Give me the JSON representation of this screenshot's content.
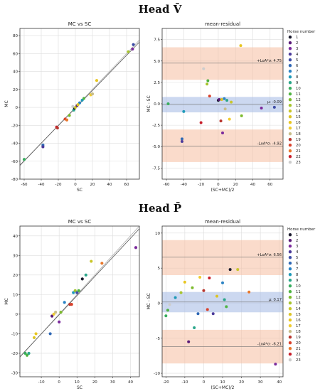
{
  "figures": [
    {
      "title": "Head V̄",
      "scatter": {
        "title": "MC vs SC",
        "xlabel": "SC",
        "ylabel": "MC",
        "xlim": [
          -65,
          75
        ],
        "ylim": [
          -80,
          88
        ],
        "xticks": [
          -60,
          -40,
          -20,
          0,
          20,
          40,
          60
        ],
        "yticks": [
          -80,
          -60,
          -40,
          -20,
          0,
          20,
          40,
          60,
          80
        ]
      },
      "ba": {
        "title": "mean-residual",
        "xlabel": "(SC+MC)/2",
        "ylabel": "MC - SC",
        "xlim": [
          -65,
          75
        ],
        "ylim": [
          -8.8,
          8.8
        ],
        "xticks": [
          -60,
          -40,
          -20,
          0,
          20,
          40,
          60
        ],
        "yticks": [
          -7.5,
          -5.0,
          -2.5,
          0.0,
          2.5,
          5.0,
          7.5
        ],
        "mean": -0.09,
        "mean_band": [
          -1.0,
          0.8
        ],
        "upper": 4.75,
        "upper_band": [
          2.8,
          6.6
        ],
        "lower": -4.92,
        "lower_band": [
          -6.8,
          -3.0
        ],
        "labels": {
          "upper": "+LoA*σ: 4.75",
          "mean": "μ: -0.09",
          "lower": "-LoA*σ: -4.92"
        }
      }
    },
    {
      "title": "Head P̄",
      "scatter": {
        "title": "MC vs SC",
        "xlabel": "SC",
        "ylabel": "MC",
        "xlim": [
          -22,
          45
        ],
        "ylim": [
          -32,
          45
        ],
        "xticks": [
          -10,
          0,
          10,
          20,
          30,
          40
        ],
        "yticks": [
          -30,
          -20,
          -10,
          0,
          10,
          20,
          30,
          40
        ]
      },
      "ba": {
        "title": "mean-residual",
        "xlabel": "(SC+MC)/2",
        "ylabel": "MC - SC",
        "xlim": [
          -22,
          42
        ],
        "ylim": [
          -10.5,
          11
        ],
        "xticks": [
          -20,
          -10,
          0,
          10,
          20,
          30,
          40
        ],
        "yticks": [
          -10,
          -5,
          0,
          5,
          10
        ],
        "mean": 0.17,
        "mean_band": [
          -1.3,
          1.6
        ],
        "upper": 6.56,
        "upper_band": [
          4.0,
          9.0
        ],
        "lower": -6.21,
        "lower_band": [
          -8.6,
          -3.8
        ],
        "labels": {
          "upper": "+LoA*σ: 6.56",
          "mean": "μ: 0.17",
          "lower": "-LoA*σ: -6.21"
        }
      }
    }
  ],
  "legend": {
    "title": "Horse number",
    "labels": [
      "1",
      "2",
      "3",
      "4",
      "5",
      "6",
      "7",
      "8",
      "9",
      "10",
      "11",
      "12",
      "13",
      "14",
      "15",
      "16",
      "17",
      "18",
      "19",
      "20",
      "21",
      "22",
      "23"
    ],
    "colors": [
      "#1b1b2e",
      "#5a1a78",
      "#7b2a9c",
      "#4b3a9a",
      "#3f4ea6",
      "#2e67b4",
      "#2b83c4",
      "#1f9ab8",
      "#2aa68a",
      "#38ad5e",
      "#4fb442",
      "#7dbb2e",
      "#a7c42e",
      "#c9c62a",
      "#dcc424",
      "#e8c620",
      "#f0cc30",
      "#c8bd8a",
      "#b8362e",
      "#d9422c",
      "#e9782c",
      "#c81e2a",
      "#cdcdcd"
    ]
  },
  "chart_data": [
    {
      "type": "scatter",
      "title": "MC vs SC",
      "panel": "Head V̄",
      "xlabel": "SC",
      "ylabel": "MC",
      "xlim": [
        -65,
        75
      ],
      "ylim": [
        -80,
        88
      ],
      "series": [
        {
          "x": [
            -60,
            -38,
            -38,
            -22,
            -21,
            -12,
            -10,
            -7,
            -2,
            -1,
            0,
            2,
            5,
            8,
            10,
            18,
            20,
            25,
            62,
            67,
            68,
            -3,
            3
          ],
          "y": [
            -58,
            -42,
            -44,
            -22,
            -23,
            -13,
            -14,
            -9,
            -3,
            -1,
            0,
            2,
            5,
            8,
            10,
            14,
            15,
            30,
            62,
            65,
            70,
            1,
            3
          ]
        }
      ]
    },
    {
      "type": "scatter",
      "title": "mean-residual",
      "panel": "Head V̄",
      "xlabel": "(SC+MC)/2",
      "ylabel": "MC - SC",
      "mean": -0.09,
      "upper": 4.75,
      "lower": -4.92,
      "series": [
        {
          "x": [
            -58,
            -42,
            -42,
            -40,
            -20,
            -17,
            -13,
            -12,
            -10,
            0,
            1,
            3,
            4,
            5,
            7,
            8,
            10,
            13,
            15,
            26,
            27,
            50,
            65
          ],
          "y": [
            0,
            -4.1,
            -4.4,
            -0.9,
            -2.2,
            4.1,
            2.3,
            2.7,
            0.9,
            0.4,
            0.5,
            -2.0,
            0.5,
            -3.4,
            0.6,
            -0.6,
            0.4,
            -1.8,
            0.2,
            6.8,
            -1.4,
            -0.5,
            -0.4
          ]
        }
      ]
    },
    {
      "type": "scatter",
      "title": "MC vs SC",
      "panel": "Head P̄",
      "xlabel": "SC",
      "ylabel": "MC",
      "xlim": [
        -22,
        45
      ],
      "ylim": [
        -32,
        45
      ],
      "series": [
        {
          "x": [
            -19,
            -18,
            -17,
            -14,
            -13,
            -5,
            -4,
            -3,
            -2,
            0,
            1,
            3,
            6,
            7,
            8,
            9,
            10,
            11,
            13,
            15,
            18,
            24,
            43
          ],
          "y": [
            -20,
            -21,
            -20,
            -12,
            -10,
            -10,
            -1,
            0,
            1,
            -4,
            1,
            6,
            5,
            5,
            11,
            12,
            11,
            12,
            18,
            20,
            27,
            26,
            34
          ]
        }
      ]
    },
    {
      "type": "scatter",
      "title": "mean-residual",
      "panel": "Head P̄",
      "xlabel": "(SC+MC)/2",
      "ylabel": "MC - SC",
      "mean": 0.17,
      "upper": 6.56,
      "lower": -6.21,
      "series": [
        {
          "x": [
            -20,
            -19,
            -18,
            -15,
            -12,
            -10,
            -8,
            -6,
            -5,
            -3,
            -2,
            0,
            2,
            3,
            5,
            7,
            10,
            11,
            12,
            14,
            18,
            24,
            38
          ],
          "y": [
            -1.8,
            -1.0,
            -0.2,
            0.8,
            1.5,
            3.0,
            -5.5,
            2.2,
            -3.5,
            -1.5,
            3.7,
            1.8,
            -0.9,
            3.6,
            -1.5,
            1.0,
            2.9,
            0.5,
            -0.5,
            4.8,
            4.8,
            1.6,
            -8.7
          ]
        }
      ]
    }
  ],
  "points": [
    {
      "scatter": [
        [
          -60,
          -58,
          10
        ],
        [
          -38,
          -42,
          6
        ],
        [
          -38,
          -44,
          4
        ],
        [
          -22,
          -22,
          22
        ],
        [
          -21,
          -23,
          19
        ],
        [
          -12,
          -13,
          20
        ],
        [
          -10,
          -14,
          21
        ],
        [
          -7,
          -9,
          12
        ],
        [
          -2,
          -3,
          9
        ],
        [
          -1,
          -1,
          1
        ],
        [
          0,
          0,
          14
        ],
        [
          2,
          2,
          2
        ],
        [
          5,
          5,
          7
        ],
        [
          8,
          8,
          8
        ],
        [
          10,
          10,
          11
        ],
        [
          18,
          14,
          17
        ],
        [
          20,
          15,
          18
        ],
        [
          25,
          30,
          16
        ],
        [
          62,
          62,
          13
        ],
        [
          67,
          65,
          3
        ],
        [
          68,
          70,
          5
        ],
        [
          -3,
          1,
          23
        ],
        [
          3,
          3,
          15
        ]
      ],
      "ba": [
        [
          -58,
          0,
          10
        ],
        [
          -42,
          -4.1,
          6
        ],
        [
          -42,
          -4.4,
          4
        ],
        [
          -40,
          -0.9,
          8
        ],
        [
          -20,
          -2.2,
          22
        ],
        [
          -17,
          4.1,
          23
        ],
        [
          -13,
          2.3,
          13
        ],
        [
          -12,
          2.7,
          11
        ],
        [
          -10,
          0.9,
          20
        ],
        [
          0,
          0.4,
          1
        ],
        [
          1,
          0.5,
          2
        ],
        [
          3,
          -2.0,
          19
        ],
        [
          4,
          0.5,
          15
        ],
        [
          5,
          -3.4,
          3
        ],
        [
          7,
          0.6,
          7
        ],
        [
          8,
          -0.6,
          18
        ],
        [
          10,
          0.4,
          9
        ],
        [
          13,
          -1.8,
          17
        ],
        [
          15,
          0.2,
          14
        ],
        [
          26,
          6.8,
          16
        ],
        [
          27,
          -1.4,
          12
        ],
        [
          50,
          -0.5,
          3
        ],
        [
          65,
          -0.4,
          5
        ]
      ]
    },
    {
      "scatter": [
        [
          -19,
          -20,
          10
        ],
        [
          -18,
          -21,
          11
        ],
        [
          -17,
          -20,
          9
        ],
        [
          -14,
          -12,
          15
        ],
        [
          -13,
          -10,
          16
        ],
        [
          -5,
          -10,
          6
        ],
        [
          -4,
          -1,
          2
        ],
        [
          -3,
          0,
          17
        ],
        [
          -2,
          1,
          18
        ],
        [
          0,
          -4,
          3
        ],
        [
          1,
          1,
          12
        ],
        [
          3,
          6,
          7
        ],
        [
          6,
          5,
          19
        ],
        [
          7,
          5,
          20
        ],
        [
          8,
          11,
          8
        ],
        [
          9,
          12,
          13
        ],
        [
          10,
          11,
          5
        ],
        [
          11,
          12,
          11
        ],
        [
          13,
          18,
          1
        ],
        [
          15,
          20,
          9
        ],
        [
          18,
          27,
          14
        ],
        [
          24,
          26,
          21
        ],
        [
          43,
          34,
          3
        ]
      ],
      "ba": [
        [
          -20,
          -1.8,
          10
        ],
        [
          -19,
          -1.0,
          11
        ],
        [
          -18,
          -0.2,
          23
        ],
        [
          -15,
          0.8,
          8
        ],
        [
          -12,
          1.5,
          13
        ],
        [
          -10,
          3.0,
          16
        ],
        [
          -8,
          -5.5,
          2
        ],
        [
          -6,
          2.2,
          12
        ],
        [
          -5,
          -3.5,
          9
        ],
        [
          -3,
          -1.5,
          6
        ],
        [
          -2,
          3.7,
          17
        ],
        [
          0,
          1.8,
          19
        ],
        [
          2,
          -0.9,
          20
        ],
        [
          3,
          3.6,
          22
        ],
        [
          5,
          -1.5,
          4
        ],
        [
          7,
          1.0,
          15
        ],
        [
          10,
          2.9,
          7
        ],
        [
          11,
          0.5,
          9
        ],
        [
          12,
          -0.5,
          11
        ],
        [
          14,
          4.8,
          1
        ],
        [
          18,
          4.8,
          14
        ],
        [
          24,
          1.6,
          21
        ],
        [
          38,
          -8.7,
          3
        ]
      ]
    }
  ]
}
